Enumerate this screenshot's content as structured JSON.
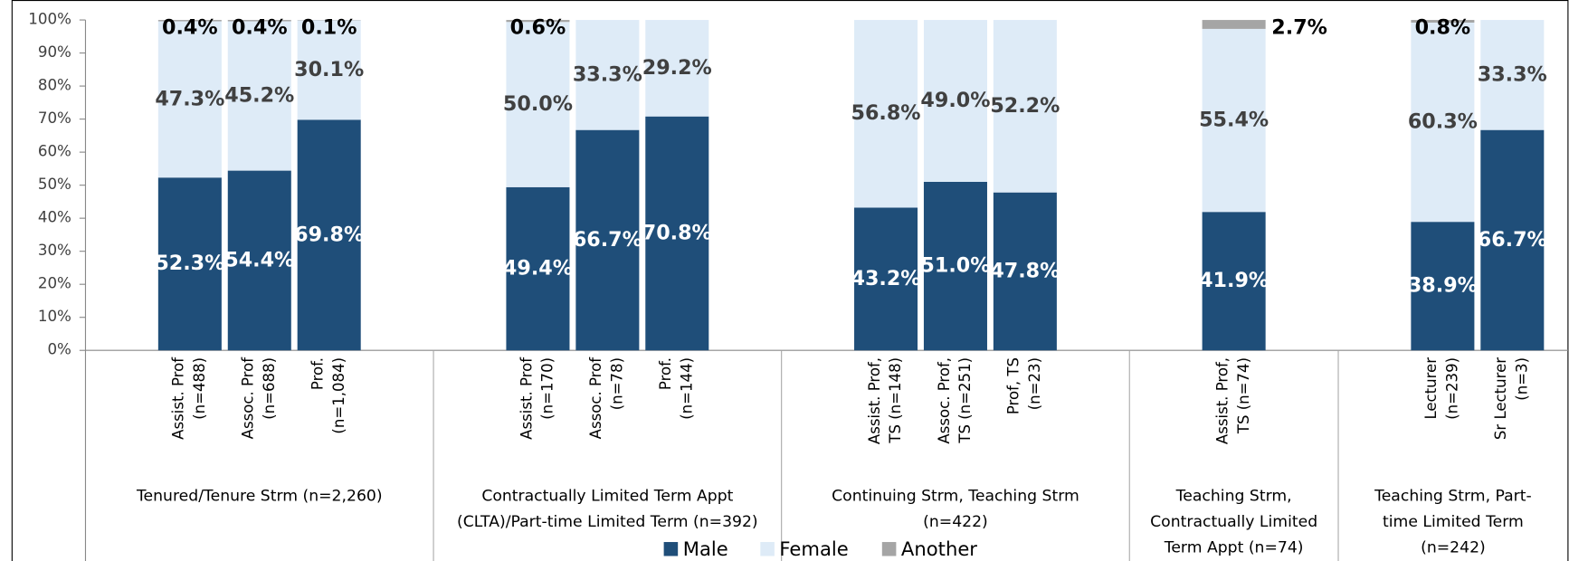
{
  "chart_data": {
    "type": "stacked_bar",
    "groups": [
      {
        "label": [
          "Tenured/Tenure Strm (n=2,260)"
        ],
        "categories": [
          [
            "Assist. Prof",
            "(n=488)"
          ],
          [
            "Assoc. Prof",
            "(n=688)"
          ],
          [
            "Prof.",
            "(n=1,084)"
          ]
        ]
      },
      {
        "label": [
          "Contractually Limited Term Appt",
          "(CLTA)/Part-time Limited Term (n=392)"
        ],
        "categories": [
          [
            "Assist. Prof",
            "(n=170)"
          ],
          [
            "Assoc. Prof",
            "(n=78)"
          ],
          [
            "Prof.",
            "(n=144)"
          ]
        ]
      },
      {
        "label": [
          "Continuing Strm, Teaching Strm",
          "(n=422)"
        ],
        "categories": [
          [
            "Assist. Prof,",
            "TS (n=148)"
          ],
          [
            "Assoc. Prof,",
            "TS (n=251)"
          ],
          [
            "Prof, TS",
            "(n=23)"
          ]
        ]
      },
      {
        "label": [
          "Teaching Strm,",
          "Contractually Limited",
          "Term Appt (n=74)"
        ],
        "categories": [
          [
            "Assist. Prof,",
            "TS (n=74)"
          ]
        ]
      },
      {
        "label": [
          "Teaching Strm, Part-",
          "time Limited Term",
          "(n=242)"
        ],
        "categories": [
          [
            "Lecturer",
            "(n=239)"
          ],
          [
            "Sr Lecturer",
            "(n=3)"
          ]
        ]
      }
    ],
    "series": [
      {
        "name": "Male",
        "color": "#1f4e79",
        "label_color": "#ffffff",
        "values": [
          52.3,
          54.4,
          69.8,
          49.4,
          66.7,
          70.8,
          43.2,
          51.0,
          47.8,
          41.9,
          38.9,
          66.7
        ],
        "value_labels": [
          "52.3%",
          "54.4%",
          "69.8%",
          "49.4%",
          "66.7%",
          "70.8%",
          "43.2%",
          "51.0%",
          "47.8%",
          "41.9%",
          "38.9%",
          "66.7%"
        ]
      },
      {
        "name": "Female",
        "color": "#deebf7",
        "label_color": "#404040",
        "values": [
          47.3,
          45.2,
          30.1,
          50.0,
          33.3,
          29.2,
          56.8,
          49.0,
          52.2,
          55.4,
          60.3,
          33.3
        ],
        "value_labels": [
          "47.3%",
          "45.2%",
          "30.1%",
          "50.0%",
          "33.3%",
          "29.2%",
          "56.8%",
          "49.0%",
          "52.2%",
          "55.4%",
          "60.3%",
          "33.3%"
        ]
      },
      {
        "name": "Another",
        "color": "#a5a5a5",
        "label_color": "#000000",
        "values": [
          0.4,
          0.4,
          0.1,
          0.6,
          null,
          null,
          null,
          null,
          null,
          2.7,
          0.8,
          null
        ],
        "value_labels": [
          "0.4%",
          "0.4%",
          "0.1%",
          "0.6%",
          null,
          null,
          null,
          null,
          null,
          "2.7%",
          "0.8%",
          null
        ]
      }
    ],
    "ylim": [
      0,
      100
    ],
    "yticks": [
      {
        "value": 0,
        "label": "0%"
      },
      {
        "value": 10,
        "label": "10%"
      },
      {
        "value": 20,
        "label": "20%"
      },
      {
        "value": 30,
        "label": "30%"
      },
      {
        "value": 40,
        "label": "40%"
      },
      {
        "value": 50,
        "label": "50%"
      },
      {
        "value": 60,
        "label": "60%"
      },
      {
        "value": 70,
        "label": "70%"
      },
      {
        "value": 80,
        "label": "80%"
      },
      {
        "value": 90,
        "label": "90%"
      },
      {
        "value": 100,
        "label": "100%"
      }
    ],
    "legend": "bottom"
  }
}
